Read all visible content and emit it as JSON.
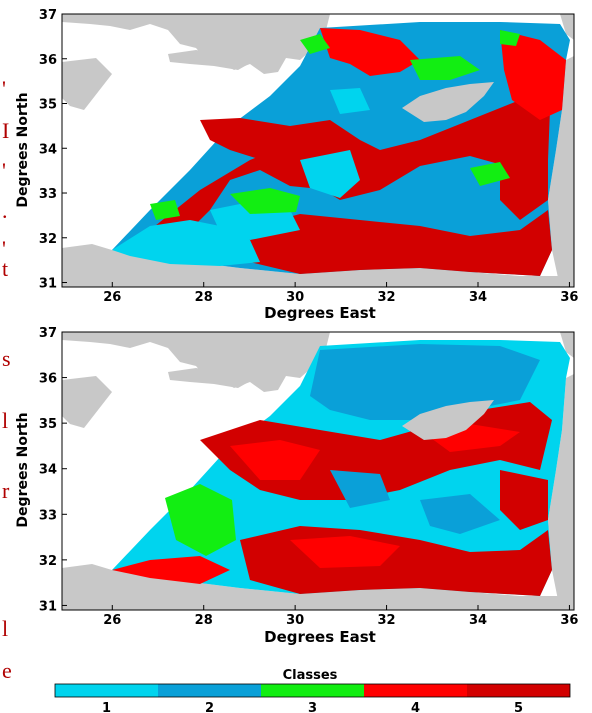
{
  "colors": {
    "class1": "#00d4ee",
    "class2": "#0aa0d8",
    "class3": "#12ee12",
    "class4": "#ff0000",
    "class5": "#d20000",
    "land": "#c8c8c8",
    "sea": "#ffffff",
    "frame": "#000000",
    "edge_text": "#b00000"
  },
  "maps": [
    {
      "xlabel": "Degrees East",
      "ylabel": "Degrees North",
      "x_ticks": [
        "26",
        "28",
        "30",
        "32",
        "34",
        "36"
      ],
      "y_ticks": [
        "31",
        "32",
        "33",
        "34",
        "35",
        "36",
        "37"
      ],
      "xlim": [
        24.9,
        36.1
      ],
      "ylim": [
        30.9,
        37.0
      ]
    },
    {
      "xlabel": "Degrees East",
      "ylabel": "Degrees North",
      "x_ticks": [
        "26",
        "28",
        "30",
        "32",
        "34",
        "36"
      ],
      "y_ticks": [
        "31",
        "32",
        "33",
        "34",
        "35",
        "36",
        "37"
      ],
      "xlim": [
        24.9,
        36.1
      ],
      "ylim": [
        30.9,
        37.0
      ]
    }
  ],
  "colorbar": {
    "title": "Classes",
    "labels": [
      "1",
      "2",
      "3",
      "4",
      "5"
    ]
  },
  "edge_glyphs": [
    "'",
    "I",
    "'",
    ".",
    "'",
    "t",
    "s",
    "l",
    "r",
    "l",
    "e"
  ]
}
